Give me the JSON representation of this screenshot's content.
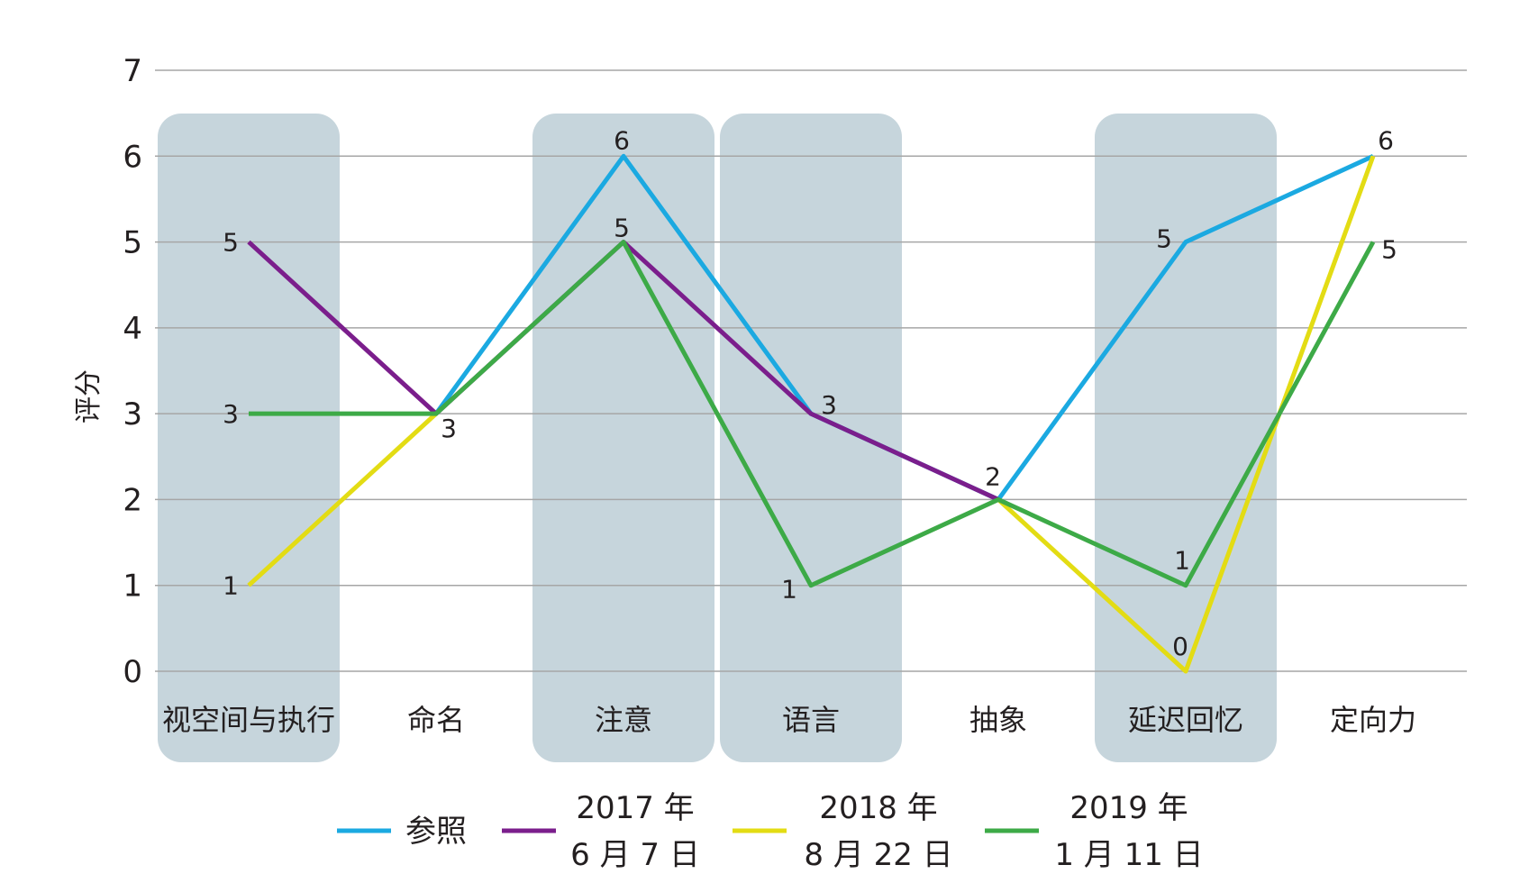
{
  "chart_data": {
    "type": "line",
    "ylabel": "评分",
    "xlabel": "",
    "ylim": [
      0,
      7
    ],
    "yticks": [
      "0",
      "1",
      "2",
      "3",
      "4",
      "5",
      "6",
      "7"
    ],
    "categories": [
      "视空间与执行",
      "命名",
      "注意",
      "语言",
      "抽象",
      "延迟回忆",
      "定向力"
    ],
    "shaded_categories": [
      0,
      2,
      3,
      5
    ],
    "grid": true,
    "legend_position": "bottom",
    "series": [
      {
        "name": "参照",
        "color": "#1ba9e1",
        "values": [
          null,
          3,
          6,
          3,
          2,
          5,
          6
        ]
      },
      {
        "name": "2017 年 6 月 7 日",
        "color": "#7b1e8c",
        "values": [
          5,
          3,
          5,
          3,
          2,
          null,
          null
        ]
      },
      {
        "name": "2018 年 8 月 22 日",
        "color": "#e3dc14",
        "values": [
          1,
          3,
          null,
          null,
          2,
          0,
          6
        ]
      },
      {
        "name": "2019 年 1 月 11 日",
        "color": "#3daa47",
        "values": [
          3,
          3,
          5,
          1,
          2,
          1,
          5
        ]
      }
    ],
    "data_labels": [
      {
        "text": "5",
        "category": 0,
        "value": 5
      },
      {
        "text": "3",
        "category": 0,
        "value": 3
      },
      {
        "text": "1",
        "category": 0,
        "value": 1
      },
      {
        "text": "3",
        "category": 1,
        "value": 3
      },
      {
        "text": "6",
        "category": 2,
        "value": 6
      },
      {
        "text": "5",
        "category": 2,
        "value": 5
      },
      {
        "text": "3",
        "category": 3,
        "value": 3
      },
      {
        "text": "1",
        "category": 3,
        "value": 1
      },
      {
        "text": "2",
        "category": 4,
        "value": 2
      },
      {
        "text": "5",
        "category": 5,
        "value": 5
      },
      {
        "text": "1",
        "category": 5,
        "value": 1
      },
      {
        "text": "0",
        "category": 5,
        "value": 0
      },
      {
        "text": "6",
        "category": 6,
        "value": 6
      },
      {
        "text": "5",
        "category": 6,
        "value": 5
      }
    ],
    "legend": [
      {
        "line1": "参照",
        "line2": ""
      },
      {
        "line1": "2017 年",
        "line2": "6 月 7 日"
      },
      {
        "line1": "2018 年",
        "line2": "8 月 22 日"
      },
      {
        "line1": "2019 年",
        "line2": "1 月 11 日"
      }
    ],
    "colors": {
      "band": "#c6d5dc",
      "grid": "#a6a6a6",
      "text": "#231f20"
    }
  }
}
